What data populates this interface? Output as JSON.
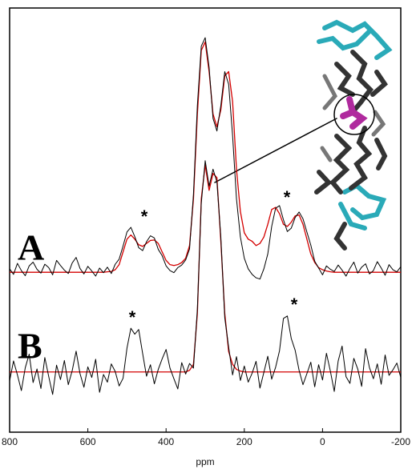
{
  "chart_data": {
    "type": "line",
    "xlabel": "ppm",
    "x": [
      800,
      790,
      780,
      770,
      760,
      750,
      740,
      730,
      720,
      710,
      700,
      690,
      680,
      670,
      660,
      650,
      640,
      630,
      620,
      610,
      600,
      590,
      580,
      570,
      560,
      550,
      540,
      530,
      520,
      510,
      500,
      490,
      480,
      470,
      460,
      450,
      440,
      430,
      420,
      410,
      400,
      390,
      380,
      370,
      360,
      350,
      340,
      330,
      320,
      310,
      300,
      290,
      280,
      270,
      260,
      250,
      240,
      230,
      220,
      210,
      200,
      190,
      180,
      170,
      160,
      150,
      140,
      130,
      120,
      110,
      100,
      90,
      80,
      70,
      60,
      50,
      40,
      30,
      20,
      10,
      0,
      -10,
      -20,
      -30,
      -40,
      -50,
      -60,
      -70,
      -80,
      -90,
      -100,
      -110,
      -120,
      -130,
      -140,
      -150,
      -160,
      -170,
      -180,
      -190,
      -200
    ],
    "xlim": [
      800,
      -200
    ],
    "xticks": [
      800,
      600,
      400,
      200,
      0,
      -200
    ],
    "ylim": [
      0,
      100
    ],
    "series": [
      {
        "name": "A",
        "color": "#000000",
        "values": [
          38.5,
          37.2,
          39.8,
          38.1,
          36.9,
          39.2,
          40.1,
          38.4,
          37.5,
          39.6,
          38.8,
          37.1,
          40.5,
          39.3,
          38.2,
          37.4,
          39.9,
          41.2,
          38.6,
          37.3,
          39.1,
          38.0,
          36.8,
          38.7,
          37.6,
          38.9,
          37.4,
          39.6,
          40.8,
          43.9,
          47.2,
          48.3,
          46.1,
          43.5,
          42.8,
          44.9,
          46.3,
          45.8,
          43.1,
          41.6,
          39.2,
          38.1,
          37.6,
          38.8,
          39.4,
          40.6,
          43.2,
          56,
          77,
          91,
          93,
          86,
          74,
          71,
          77,
          85,
          82,
          70,
          55,
          46,
          41,
          38.5,
          37.2,
          36.4,
          36.1,
          38.5,
          42,
          48.5,
          52.8,
          53.4,
          50.1,
          47.3,
          48.1,
          50.6,
          51.9,
          50.3,
          47.2,
          44.1,
          40.3,
          38.7,
          37.1,
          39.2,
          38.4,
          37.9,
          39.4,
          38.2,
          36.8,
          38.6,
          40.1,
          37.5,
          38.9,
          39.7,
          37.3,
          38.1,
          40.2,
          38.7,
          37.0,
          39.5,
          38.3,
          37.8,
          39.0
        ]
      },
      {
        "color": "#d40000",
        "values": [
          37.7,
          37.7,
          37.7,
          37.7,
          37.7,
          37.7,
          37.7,
          37.7,
          37.7,
          37.7,
          37.7,
          37.7,
          37.7,
          37.7,
          37.7,
          37.7,
          37.7,
          37.7,
          37.7,
          37.7,
          37.7,
          37.7,
          37.7,
          37.7,
          37.7,
          37.8,
          37.9,
          38.3,
          39.5,
          42.5,
          45.5,
          46.5,
          45.5,
          44.2,
          43.8,
          44.5,
          45.2,
          45.3,
          44.5,
          42.5,
          40.5,
          39.5,
          39.3,
          39.5,
          40,
          41,
          44,
          55,
          75,
          90,
          92,
          85,
          75,
          72,
          76,
          84,
          85,
          78,
          62,
          52,
          47,
          45.5,
          45,
          44,
          44.5,
          46,
          49,
          52.5,
          53,
          51.5,
          49,
          48.5,
          49.5,
          51,
          51.2,
          49,
          45.5,
          42,
          40,
          38.8,
          38.3,
          38,
          37.8,
          37.7,
          37.7,
          37.7,
          37.7,
          37.7,
          37.7,
          37.7,
          37.7,
          37.7,
          37.7,
          37.7,
          37.7,
          37.7,
          37.7,
          37.7,
          37.7,
          37.7,
          37.7
        ]
      },
      {
        "name": "B",
        "color": "#000000",
        "values": [
          12.1,
          16.8,
          13.5,
          9.8,
          15.2,
          18.4,
          11.7,
          14.9,
          10.3,
          17.6,
          13.1,
          8.9,
          15.8,
          12.4,
          16.9,
          11.2,
          14.5,
          19.1,
          13.8,
          10.6,
          15.4,
          12.9,
          17.2,
          9.4,
          13.6,
          11.8,
          16.1,
          14.3,
          10.9,
          12.7,
          19.8,
          24.5,
          23.1,
          24.2,
          18.6,
          13.2,
          15.9,
          11.4,
          14.8,
          17.3,
          19.5,
          15.1,
          12.6,
          10.2,
          16.4,
          13.7,
          16.2,
          15.1,
          29,
          54,
          64,
          58,
          62,
          59,
          46,
          27,
          20,
          13.5,
          17.8,
          12.2,
          15.6,
          11.8,
          13.9,
          16.7,
          10.4,
          14.1,
          17.9,
          12.5,
          15.3,
          19.2,
          26.8,
          27.4,
          22.1,
          19.3,
          14.6,
          11.2,
          13.8,
          16.5,
          10.7,
          15.9,
          12.3,
          18.6,
          14.4,
          9.6,
          16.8,
          20.3,
          13.1,
          11.5,
          17.4,
          14.9,
          10.8,
          19.7,
          15.2,
          12.6,
          16.1,
          11.3,
          18.2,
          13.4,
          14.7,
          16.3,
          12.9
        ]
      },
      {
        "color": "#d40000",
        "values": [
          14.2,
          14.2,
          14.2,
          14.2,
          14.2,
          14.2,
          14.2,
          14.2,
          14.2,
          14.2,
          14.2,
          14.2,
          14.2,
          14.2,
          14.2,
          14.2,
          14.2,
          14.2,
          14.2,
          14.2,
          14.2,
          14.2,
          14.2,
          14.2,
          14.2,
          14.2,
          14.2,
          14.2,
          14.2,
          14.2,
          14.2,
          14.2,
          14.2,
          14.2,
          14.2,
          14.2,
          14.2,
          14.2,
          14.2,
          14.2,
          14.2,
          14.2,
          14.2,
          14.2,
          14.2,
          14.2,
          14.6,
          16,
          28,
          55,
          63,
          57,
          61,
          60,
          45,
          28,
          19,
          16,
          14.8,
          14.4,
          14.2,
          14.2,
          14.2,
          14.2,
          14.2,
          14.2,
          14.2,
          14.2,
          14.2,
          14.2,
          14.2,
          14.2,
          14.2,
          14.2,
          14.2,
          14.2,
          14.2,
          14.2,
          14.2,
          14.2,
          14.2,
          14.2,
          14.2,
          14.2,
          14.2,
          14.2,
          14.2,
          14.2,
          14.2,
          14.2,
          14.2,
          14.2,
          14.2,
          14.2,
          14.2,
          14.2,
          14.2,
          14.2,
          14.2,
          14.2,
          14.2
        ]
      }
    ],
    "annotations": [
      "*",
      "*",
      "*",
      "*"
    ]
  }
}
